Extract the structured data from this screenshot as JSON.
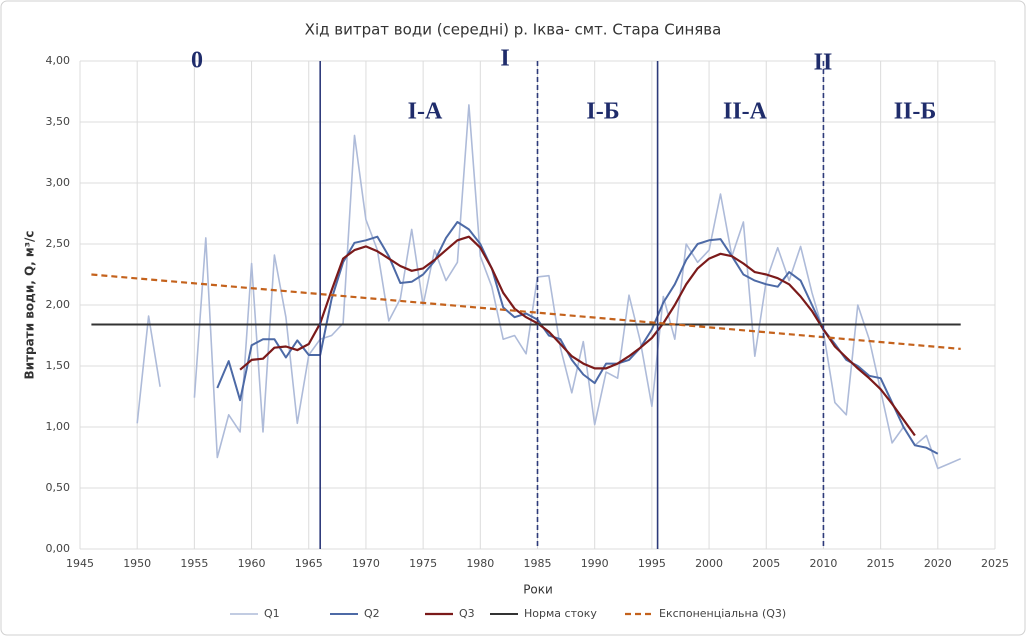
{
  "chart_data": {
    "type": "line",
    "title": "Хід витрат води (середні) р. Іква- смт. Стара Синява",
    "xlabel": "Роки",
    "ylabel": "Витрати води, Q, м³/с",
    "xlim": [
      1945,
      2025
    ],
    "xticks": [
      1945,
      1950,
      1955,
      1960,
      1965,
      1970,
      1975,
      1980,
      1985,
      1990,
      1995,
      2000,
      2005,
      2010,
      2015,
      2020,
      2025
    ],
    "ylim": [
      0,
      4
    ],
    "yticks": [
      {
        "value": 0,
        "label": "0,00"
      },
      {
        "value": 0.5,
        "label": "0,50"
      },
      {
        "value": 1,
        "label": "1,00"
      },
      {
        "value": 1.5,
        "label": "1,50"
      },
      {
        "value": 2,
        "label": "2,00"
      },
      {
        "value": 2.5,
        "label": "2,50"
      },
      {
        "value": 3,
        "label": "3,00"
      },
      {
        "value": 3.5,
        "label": "3,50"
      },
      {
        "value": 4,
        "label": "4,00"
      }
    ],
    "grid": true,
    "series": [
      {
        "name": "Q1",
        "color": "#aebbd9",
        "width": 1.6,
        "dashed": false,
        "x": [
          1950,
          1951,
          1952,
          1953,
          1954,
          1955,
          1956,
          1957,
          1958,
          1959,
          1960,
          1961,
          1962,
          1963,
          1964,
          1965,
          1966,
          1967,
          1968,
          1969,
          1970,
          1971,
          1972,
          1973,
          1974,
          1975,
          1976,
          1977,
          1978,
          1979,
          1980,
          1981,
          1982,
          1983,
          1984,
          1985,
          1986,
          1987,
          1988,
          1989,
          1990,
          1991,
          1992,
          1993,
          1994,
          1995,
          1996,
          1997,
          1998,
          1999,
          2000,
          2001,
          2002,
          2003,
          2004,
          2005,
          2006,
          2007,
          2008,
          2009,
          2010,
          2011,
          2012,
          2013,
          2014,
          2015,
          2016,
          2017,
          2018,
          2019,
          2020,
          2021,
          2022
        ],
        "values": [
          1.03,
          1.91,
          1.33,
          null,
          null,
          1.24,
          2.55,
          0.75,
          1.1,
          0.96,
          2.34,
          0.96,
          2.41,
          1.9,
          1.03,
          1.59,
          1.72,
          1.75,
          1.85,
          3.39,
          2.7,
          2.45,
          1.87,
          2.05,
          2.62,
          2.0,
          2.45,
          2.2,
          2.35,
          3.64,
          2.4,
          2.15,
          1.72,
          1.75,
          1.6,
          2.23,
          2.24,
          1.65,
          1.28,
          1.7,
          1.02,
          1.45,
          1.4,
          2.08,
          1.7,
          1.17,
          2.07,
          1.72,
          2.5,
          2.35,
          2.45,
          2.91,
          2.4,
          2.68,
          1.58,
          2.2,
          2.47,
          2.2,
          2.48,
          2.1,
          1.78,
          1.2,
          1.1,
          2.0,
          1.72,
          1.3,
          0.87,
          1.0,
          0.85,
          0.93,
          0.66,
          0.7,
          0.74
        ]
      },
      {
        "name": "Q2",
        "color": "#4d6aa6",
        "width": 2,
        "dashed": false,
        "x": [
          1957,
          1958,
          1959,
          1960,
          1961,
          1962,
          1963,
          1964,
          1965,
          1966,
          1967,
          1968,
          1969,
          1970,
          1971,
          1972,
          1973,
          1974,
          1975,
          1976,
          1977,
          1978,
          1979,
          1980,
          1981,
          1982,
          1983,
          1984,
          1985,
          1986,
          1987,
          1988,
          1989,
          1990,
          1991,
          1992,
          1993,
          1994,
          1995,
          1996,
          1997,
          1998,
          1999,
          2000,
          2001,
          2002,
          2003,
          2004,
          2005,
          2006,
          2007,
          2008,
          2009,
          2010,
          2011,
          2012,
          2013,
          2014,
          2015,
          2016,
          2017,
          2018,
          2019,
          2020
        ],
        "values": [
          1.32,
          1.54,
          1.22,
          1.67,
          1.72,
          1.72,
          1.57,
          1.71,
          1.59,
          1.59,
          2.05,
          2.35,
          2.51,
          2.53,
          2.56,
          2.4,
          2.18,
          2.19,
          2.25,
          2.36,
          2.55,
          2.68,
          2.62,
          2.5,
          2.3,
          1.98,
          1.9,
          1.93,
          1.88,
          1.75,
          1.72,
          1.55,
          1.43,
          1.36,
          1.52,
          1.52,
          1.55,
          1.65,
          1.8,
          2.02,
          2.17,
          2.37,
          2.5,
          2.53,
          2.54,
          2.4,
          2.25,
          2.2,
          2.17,
          2.15,
          2.27,
          2.2,
          2.0,
          1.8,
          1.68,
          1.55,
          1.5,
          1.42,
          1.4,
          1.2,
          1.0,
          0.85,
          0.83,
          0.78
        ]
      },
      {
        "name": "Q3",
        "color": "#7b1a1a",
        "width": 2.2,
        "dashed": false,
        "x": [
          1959,
          1960,
          1961,
          1962,
          1963,
          1964,
          1965,
          1966,
          1967,
          1968,
          1969,
          1970,
          1971,
          1972,
          1973,
          1974,
          1975,
          1976,
          1977,
          1978,
          1979,
          1980,
          1981,
          1982,
          1983,
          1984,
          1985,
          1986,
          1987,
          1988,
          1989,
          1990,
          1991,
          1992,
          1993,
          1994,
          1995,
          1996,
          1997,
          1998,
          1999,
          2000,
          2001,
          2002,
          2003,
          2004,
          2005,
          2006,
          2007,
          2008,
          2009,
          2010,
          2011,
          2012,
          2013,
          2014,
          2015,
          2016,
          2017,
          2018
        ],
        "values": [
          1.47,
          1.55,
          1.56,
          1.65,
          1.66,
          1.63,
          1.68,
          1.85,
          2.12,
          2.38,
          2.45,
          2.48,
          2.44,
          2.38,
          2.32,
          2.28,
          2.3,
          2.37,
          2.45,
          2.53,
          2.56,
          2.47,
          2.3,
          2.1,
          1.97,
          1.9,
          1.85,
          1.78,
          1.68,
          1.58,
          1.52,
          1.48,
          1.48,
          1.52,
          1.58,
          1.65,
          1.73,
          1.85,
          2.0,
          2.17,
          2.3,
          2.38,
          2.42,
          2.4,
          2.34,
          2.27,
          2.25,
          2.22,
          2.17,
          2.07,
          1.95,
          1.8,
          1.66,
          1.57,
          1.48,
          1.4,
          1.31,
          1.19,
          1.06,
          0.93
        ]
      },
      {
        "name": "Норма стоку",
        "color": "#333333",
        "width": 2,
        "dashed": false,
        "x": [
          1946,
          2022
        ],
        "values": [
          1.84,
          1.84
        ]
      },
      {
        "name": "Експоненціальна (Q3)",
        "color": "#c4621c",
        "width": 2.2,
        "dashed": true,
        "x": [
          1946,
          2022
        ],
        "values": [
          2.25,
          1.64
        ]
      }
    ],
    "dividers": [
      {
        "x": 1966,
        "dashed": false
      },
      {
        "x": 1985,
        "dashed": true
      },
      {
        "x": 1995.5,
        "dashed": false
      },
      {
        "x": 2010,
        "dashed": true
      }
    ],
    "annotations": [
      "0",
      "I",
      "I-А",
      "I-Б",
      "II-А",
      "II",
      "II-Б"
    ]
  }
}
